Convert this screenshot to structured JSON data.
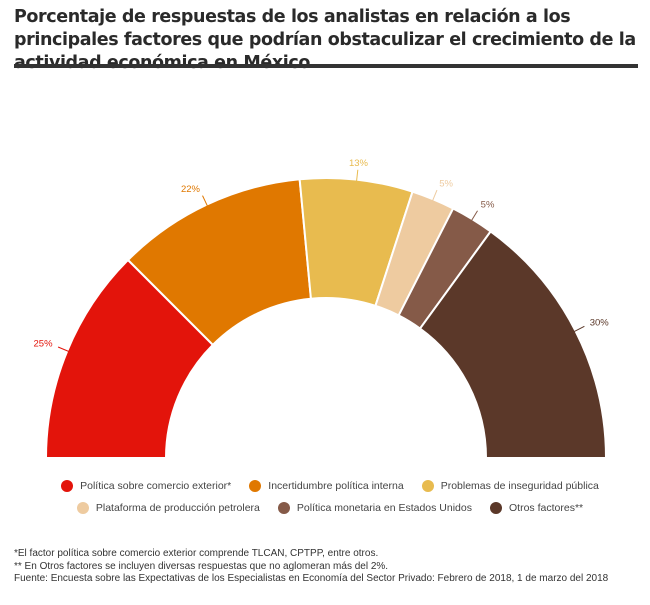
{
  "title": "Porcentaje de respuestas de los analistas en relación a los principales factores que podrían obstaculizar el crecimiento de la actividad económica en México",
  "chart_data": {
    "type": "pie",
    "variant": "semicircle-donut",
    "categories": [
      "Política sobre comercio exterior*",
      "Incertidumbre política interna",
      "Problemas de inseguridad pública",
      "Plataforma de producción petrolera",
      "Política monetaria en Estados Unidos",
      "Otros factores**"
    ],
    "values": [
      25,
      22,
      13,
      5,
      5,
      30
    ],
    "labels": [
      "25%",
      "22%",
      "13%",
      "5%",
      "5%",
      "30%"
    ],
    "colors": [
      "#e3140b",
      "#e07800",
      "#e8bb4f",
      "#eecba0",
      "#855a48",
      "#5b3829"
    ],
    "legend_position": "bottom"
  },
  "legend": [
    {
      "label": "Política sobre comercio exterior*",
      "color": "#e3140b"
    },
    {
      "label": "Incertidumbre política interna",
      "color": "#e07800"
    },
    {
      "label": "Problemas de inseguridad pública",
      "color": "#e8bb4f"
    },
    {
      "label": "Plataforma de producción petrolera",
      "color": "#eecba0"
    },
    {
      "label": "Política monetaria en Estados Unidos",
      "color": "#855a48"
    },
    {
      "label": "Otros factores**",
      "color": "#5b3829"
    }
  ],
  "notes": {
    "note1": "*El factor política sobre comercio exterior comprende TLCAN, CPTPP, entre otros.",
    "note2": "** En Otros factores se incluyen diversas respuestas que no aglomeran más del 2%.",
    "source": "Fuente: Encuesta sobre las Expectativas de los Especialistas en Economía del Sector Privado: Febrero de 2018, 1 de marzo del 2018"
  }
}
